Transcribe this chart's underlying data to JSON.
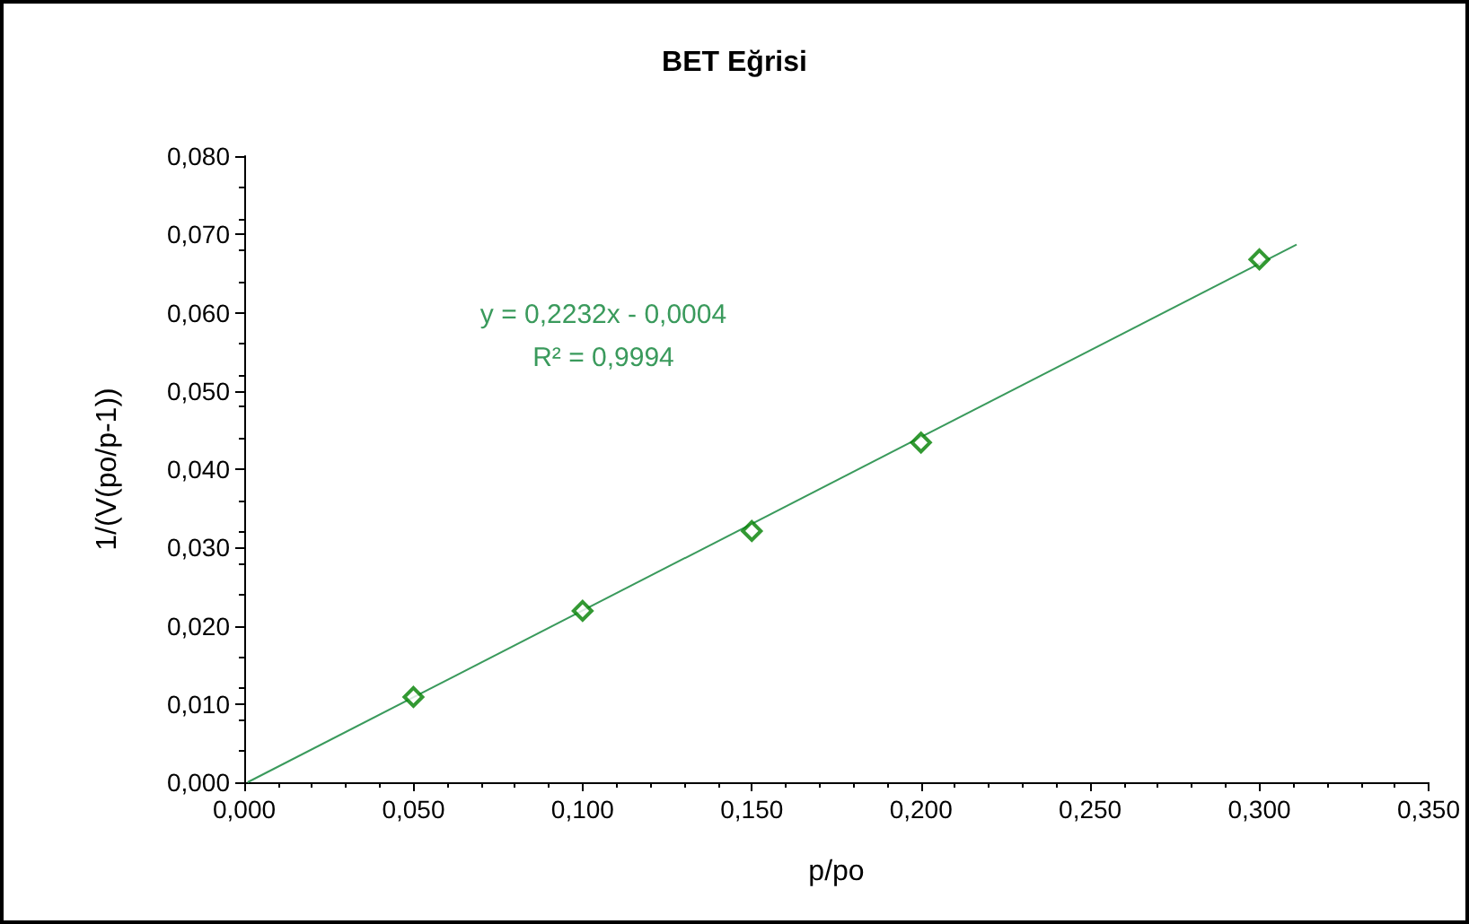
{
  "chart_data": {
    "type": "scatter",
    "title": "BET Eğrisi",
    "xlabel": "p/po",
    "ylabel": "1/(V(po/p-1))",
    "series": [
      {
        "color": "#008000",
        "marker": "diamond",
        "x": [
          0.05,
          0.1,
          0.15,
          0.2,
          0.3
        ],
        "values": [
          0.0109,
          0.0219,
          0.0321,
          0.0434,
          0.0668
        ]
      },
      {
        "type": "line",
        "color": "#3a9a5c",
        "marker": "none",
        "x": [
          0.001,
          0.311
        ],
        "values": [
          0.0,
          0.0687
        ]
      }
    ],
    "xlim": [
      0,
      0.35
    ],
    "ylim": [
      0,
      0.08
    ],
    "xticks": [
      {
        "value": 0,
        "label": "0,000"
      },
      {
        "value": 0.05,
        "label": "0,050"
      },
      {
        "value": 0.1,
        "label": "0,100"
      },
      {
        "value": 0.15,
        "label": "0,150"
      },
      {
        "value": 0.2,
        "label": "0,200"
      },
      {
        "value": 0.25,
        "label": "0,250"
      },
      {
        "value": 0.3,
        "label": "0,300"
      },
      {
        "value": 0.35,
        "label": "0,350"
      }
    ],
    "yticks": [
      {
        "value": 0,
        "label": "0,000"
      },
      {
        "value": 0.01,
        "label": "0,010"
      },
      {
        "value": 0.02,
        "label": "0,020"
      },
      {
        "value": 0.03,
        "label": "0,030"
      },
      {
        "value": 0.04,
        "label": "0,040"
      },
      {
        "value": 0.05,
        "label": "0,050"
      },
      {
        "value": 0.06,
        "label": "0,060"
      },
      {
        "value": 0.07,
        "label": "0,070"
      },
      {
        "value": 0.08,
        "label": "0,080"
      }
    ],
    "annotations": [
      "y = 0,2232x - 0,0004",
      "R² = 0,9994"
    ],
    "grid": false
  }
}
